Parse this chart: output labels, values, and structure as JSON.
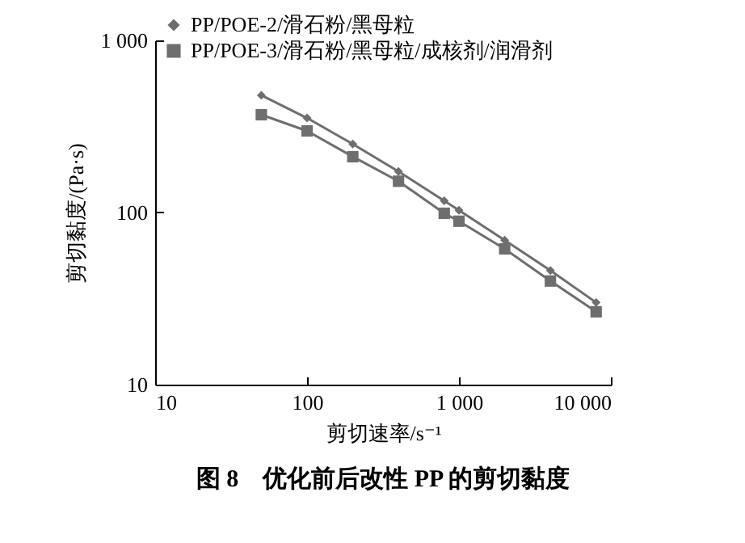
{
  "chart_data": {
    "type": "line",
    "title": "图 8　优化前后改性 PP 的剪切黏度",
    "xlabel": "剪切速率/s⁻¹",
    "ylabel": "剪切黏度/(Pa·s)",
    "log": "xy",
    "x": [
      50,
      100,
      200,
      400,
      800,
      1000,
      2000,
      4000,
      8000
    ],
    "series": [
      {
        "name": "PP/POE-2/滑石粉/黑母粒",
        "color": "#6e6e6e",
        "marker": "diamond",
        "values": [
          480,
          354,
          250,
          173,
          117,
          103,
          69,
          46,
          30
        ]
      },
      {
        "name": "PP/POE-3/滑石粉/黑母粒/成核剂/润滑剂",
        "color": "#6e6e6e",
        "marker": "square",
        "values": [
          370,
          298,
          211,
          152,
          99,
          89,
          61.5,
          40,
          26.5
        ]
      }
    ],
    "xlim": [
      10,
      10000
    ],
    "xticks": [
      10,
      100,
      {
        "value": 1000,
        "label": "1 000"
      },
      {
        "value": 10000,
        "label": "10 000"
      }
    ],
    "ylim": [
      10,
      1000
    ],
    "yticks": [
      10,
      100,
      {
        "value": 1000,
        "label": "1 000"
      }
    ],
    "grid": false,
    "legend": "top left",
    "line_style": "solid"
  }
}
